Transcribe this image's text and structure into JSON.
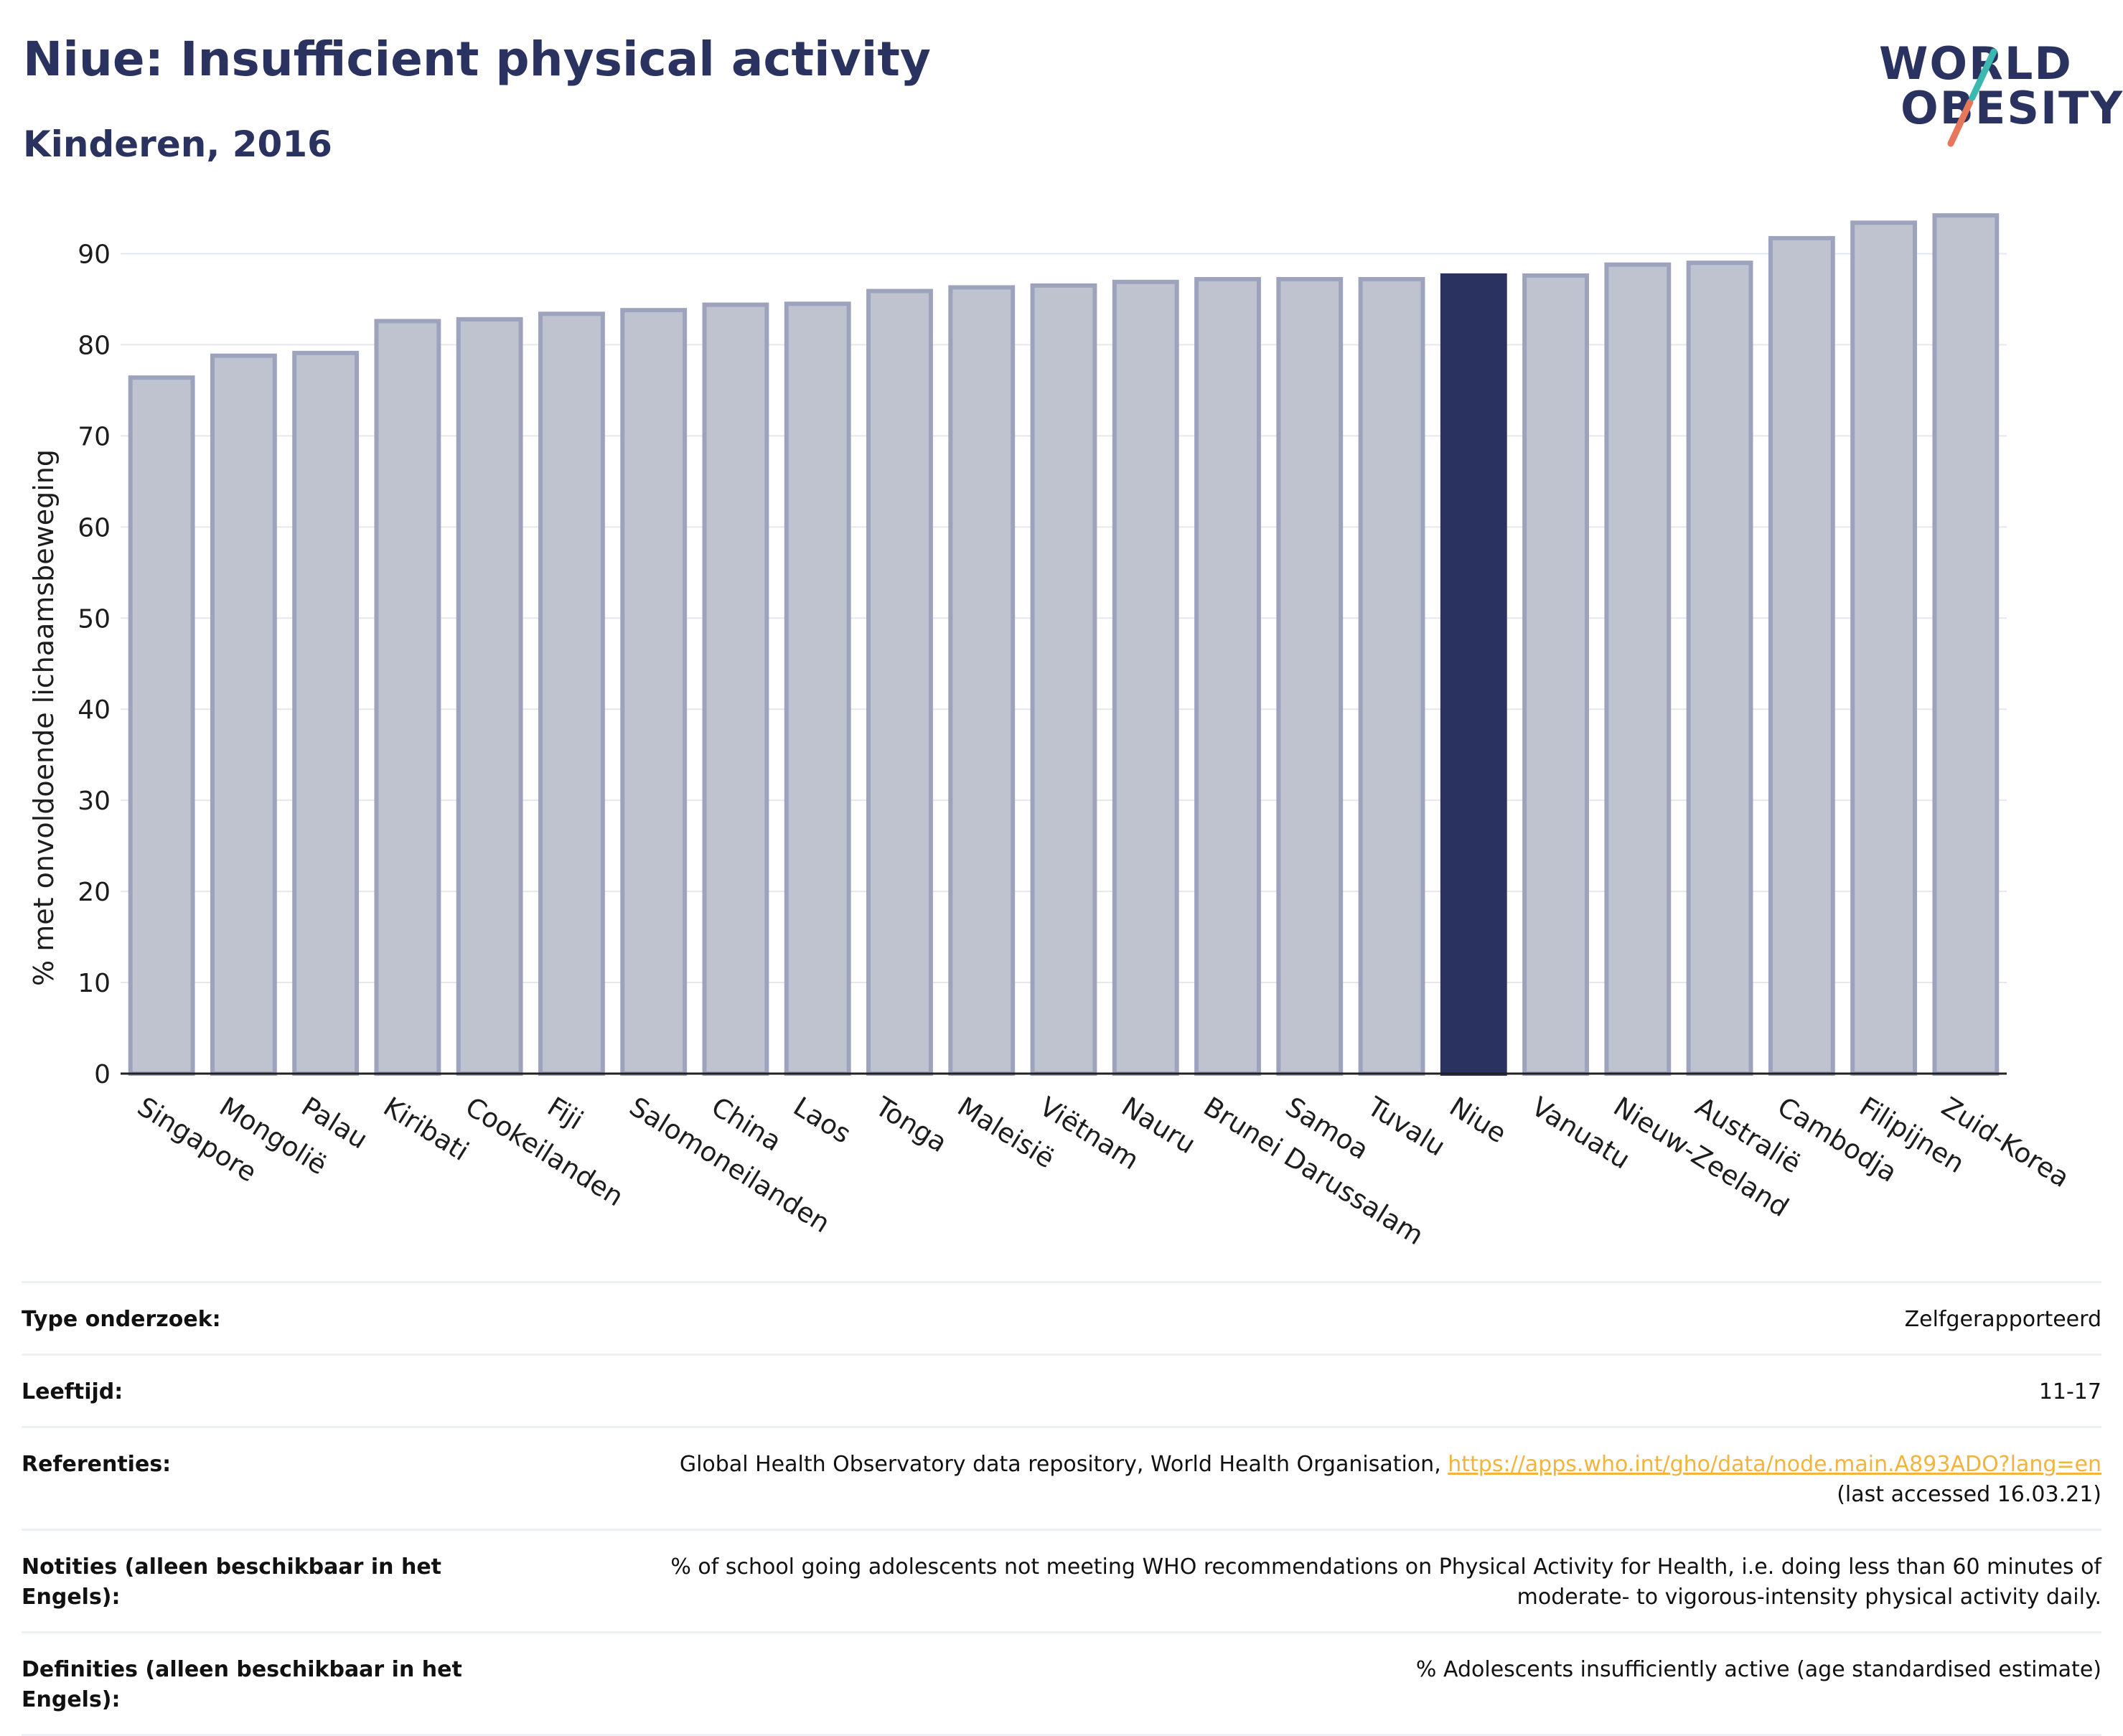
{
  "header": {
    "title": "Niue: Insufficient physical activity",
    "subtitle": "Kinderen, 2016"
  },
  "logo": {
    "line1": "WORLD",
    "line2": "OBESITY",
    "accent_colors": [
      "#3bb9b1",
      "#e8765b"
    ]
  },
  "colors": {
    "highlight_bar": "#2a3360",
    "default_bar_fill": "#bfc3d0",
    "default_bar_stroke": "#9ea3bd",
    "title": "#2a3360",
    "link": "#f2b43d"
  },
  "chart_data": {
    "type": "bar",
    "title": "",
    "xlabel": "",
    "ylabel": "% met onvoldoende lichaamsbeweging",
    "ylim": [
      0,
      95
    ],
    "yticks": [
      0,
      10,
      20,
      30,
      40,
      50,
      60,
      70,
      80,
      90
    ],
    "grid": true,
    "highlight": "Niue",
    "categories": [
      "Singapore",
      "Mongolië",
      "Palau",
      "Kiribati",
      "Cookeilanden",
      "Fiji",
      "Salomoneilanden",
      "China",
      "Laos",
      "Tonga",
      "Maleisië",
      "Viëtnam",
      "Nauru",
      "Brunei Darussalam",
      "Samoa",
      "Tuvalu",
      "Niue",
      "Vanuatu",
      "Nieuw-Zeeland",
      "Australië",
      "Cambodja",
      "Filipijnen",
      "Zuid-Korea"
    ],
    "values": [
      76.4,
      78.8,
      79.1,
      82.6,
      82.8,
      83.4,
      83.8,
      84.4,
      84.5,
      85.9,
      86.3,
      86.5,
      86.9,
      87.2,
      87.2,
      87.2,
      87.6,
      87.6,
      88.8,
      89.0,
      91.7,
      93.4,
      94.2
    ]
  },
  "footer": {
    "rows": [
      {
        "label": "Type onderzoek:",
        "value": "Zelfgerapporteerd"
      },
      {
        "label": "Leeftijd:",
        "value": "11-17"
      },
      {
        "label": "Referenties:",
        "value": "Global Health Observatory data repository, World Health Organisation, ",
        "link": "https://apps.who.int/gho/data/node.main.A893ADO?lang=en",
        "value_after": "(last accessed 16.03.21)"
      },
      {
        "label": "Notities (alleen beschikbaar in het Engels):",
        "value": "% of school going adolescents not meeting WHO recommendations on Physical Activity for Health, i.e. doing less than 60 minutes of moderate- to vigorous-intensity physical activity daily."
      },
      {
        "label": "Definities (alleen beschikbaar in het Engels):",
        "value": "% Adolescents insufficiently active (age standardised estimate)"
      }
    ]
  }
}
